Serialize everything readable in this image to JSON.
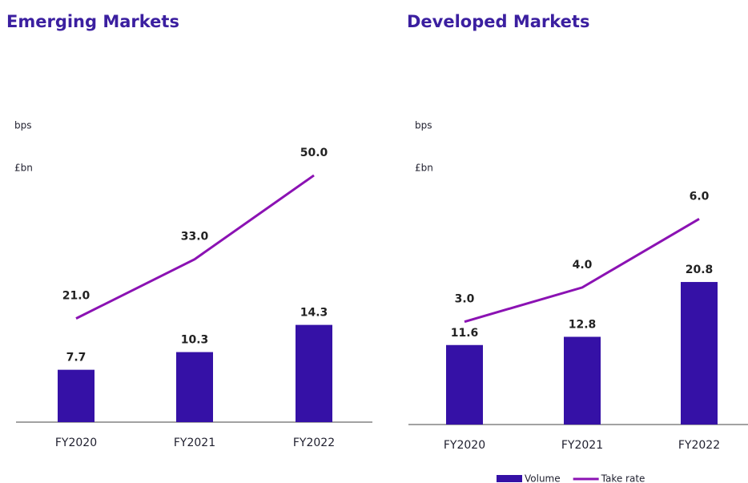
{
  "chart_data": [
    {
      "type": "bar",
      "title": "Emerging Markets",
      "y_label": "£bn",
      "y2_label": "bps",
      "categories": [
        "FY2020",
        "FY2021",
        "FY2022"
      ],
      "series": [
        {
          "type": "bar",
          "color": "#3511a6",
          "values": [
            7.7,
            10.3,
            14.3
          ]
        },
        {
          "type": "line",
          "axis": "y2",
          "color": "#8b12b3",
          "values": [
            21,
            33,
            50
          ],
          "value_labels": [
            "21.0",
            "33.0",
            "50.0"
          ]
        }
      ],
      "ylim": [
        0,
        45
      ],
      "y2lim": [
        0,
        62
      ]
    },
    {
      "type": "bar",
      "title": "Developed Markets",
      "y_label": "£bn",
      "y2_label": "bps",
      "categories": [
        "FY2020",
        "FY2021",
        "FY2022"
      ],
      "series": [
        {
          "name": "Volume",
          "type": "bar",
          "color": "#3511a6",
          "values": [
            11.6,
            12.8,
            20.8
          ]
        },
        {
          "name": "Take rate",
          "type": "line",
          "axis": "y2",
          "color": "#8b12b3",
          "values": [
            3,
            4,
            6
          ],
          "value_labels": [
            "3.0",
            "4.0",
            "6.0"
          ]
        }
      ],
      "ylim": [
        0,
        45
      ],
      "y2lim": [
        0,
        9
      ]
    }
  ]
}
